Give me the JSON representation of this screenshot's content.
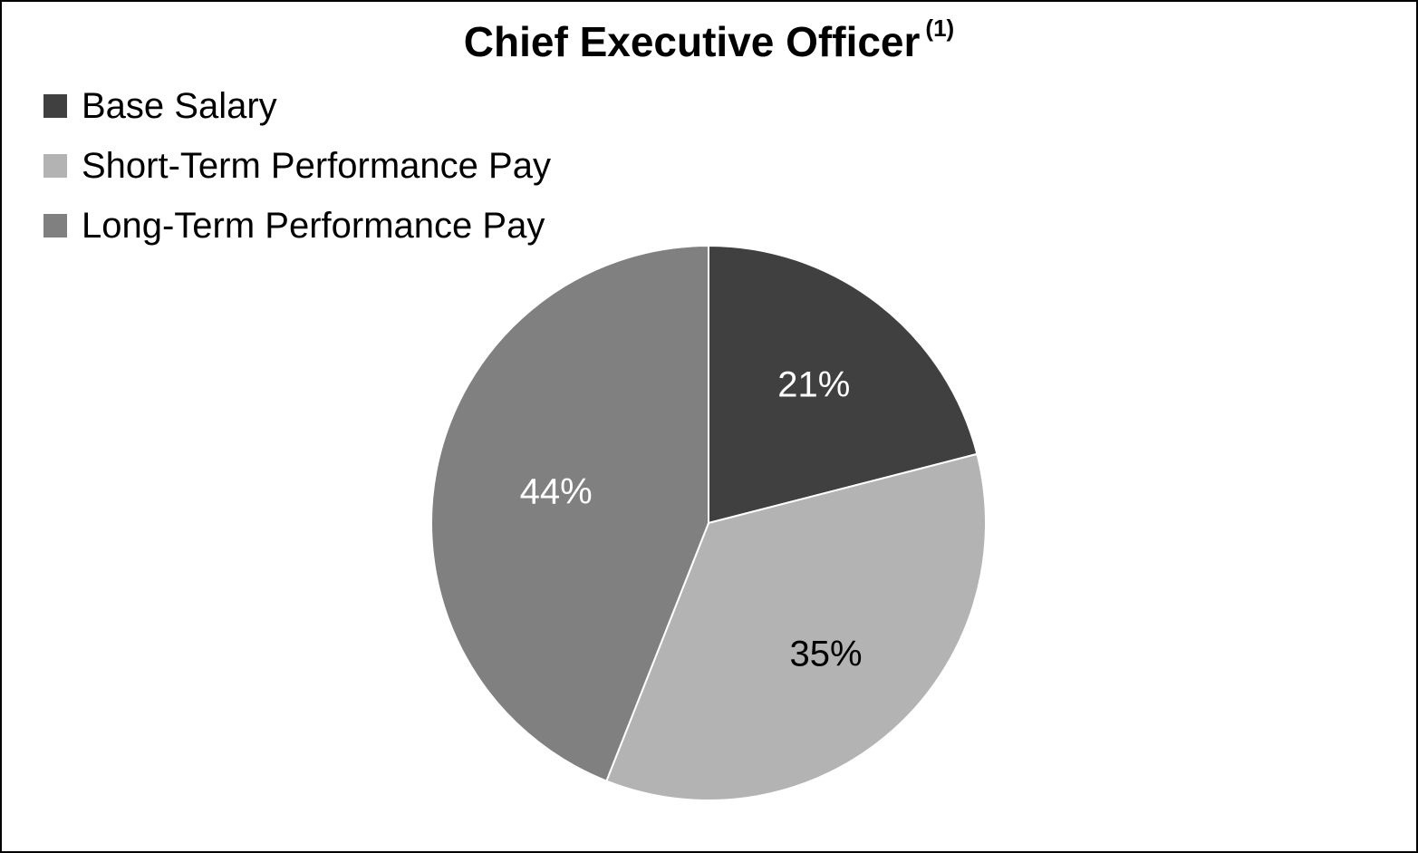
{
  "chart_data": {
    "type": "pie",
    "title": "Chief Executive Officer",
    "title_note": "(1)",
    "legend_position": "top-left",
    "categories": [
      "Base Salary",
      "Short-Term Performance Pay",
      "Long-Term Performance Pay"
    ],
    "values": [
      21,
      35,
      44
    ],
    "labels": [
      "21%",
      "35%",
      "44%"
    ],
    "colors": [
      "#404040",
      "#b3b3b3",
      "#808080"
    ],
    "label_colors": [
      "#ffffff",
      "#000000",
      "#ffffff"
    ]
  }
}
